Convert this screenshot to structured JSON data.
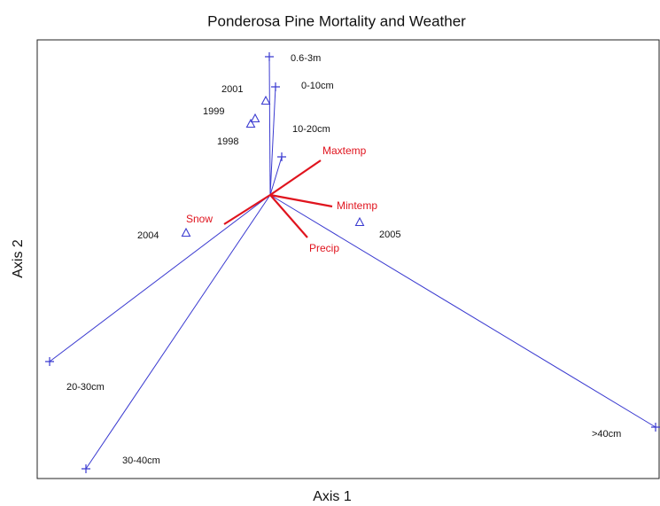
{
  "chart_data": {
    "type": "biplot",
    "title": "Ponderosa Pine Mortality and Weather",
    "x_label": "Axis 1",
    "y_label": "Axis 2",
    "xlim": [
      -2.63,
      4.4
    ],
    "ylim": [
      -3.2,
      1.75
    ],
    "species": {
      "color": "#3a3ad0",
      "labels": [
        "0.6-3m",
        "0-10cm",
        "10-20cm",
        "20-30cm",
        "30-40cm",
        ">40cm"
      ],
      "x": [
        -0.01,
        0.06,
        0.13,
        -2.49,
        -2.08,
        4.35
      ],
      "y": [
        1.56,
        1.22,
        0.43,
        -1.88,
        -3.09,
        -2.62
      ]
    },
    "years": {
      "color": "#3a3ad0",
      "labels": [
        "2001",
        "1999",
        "1998",
        "2004",
        "2005"
      ],
      "x": [
        -0.05,
        -0.17,
        -0.22,
        -0.95,
        1.01
      ],
      "y": [
        1.06,
        0.86,
        0.8,
        -0.43,
        -0.31
      ]
    },
    "variables": {
      "color": "#e0141e",
      "labels": [
        "Maxtemp",
        "Mintemp",
        "Precip",
        "Snow"
      ],
      "x": [
        0.57,
        0.7,
        0.42,
        -0.52
      ],
      "y": [
        0.39,
        -0.13,
        -0.48,
        -0.33
      ]
    }
  }
}
